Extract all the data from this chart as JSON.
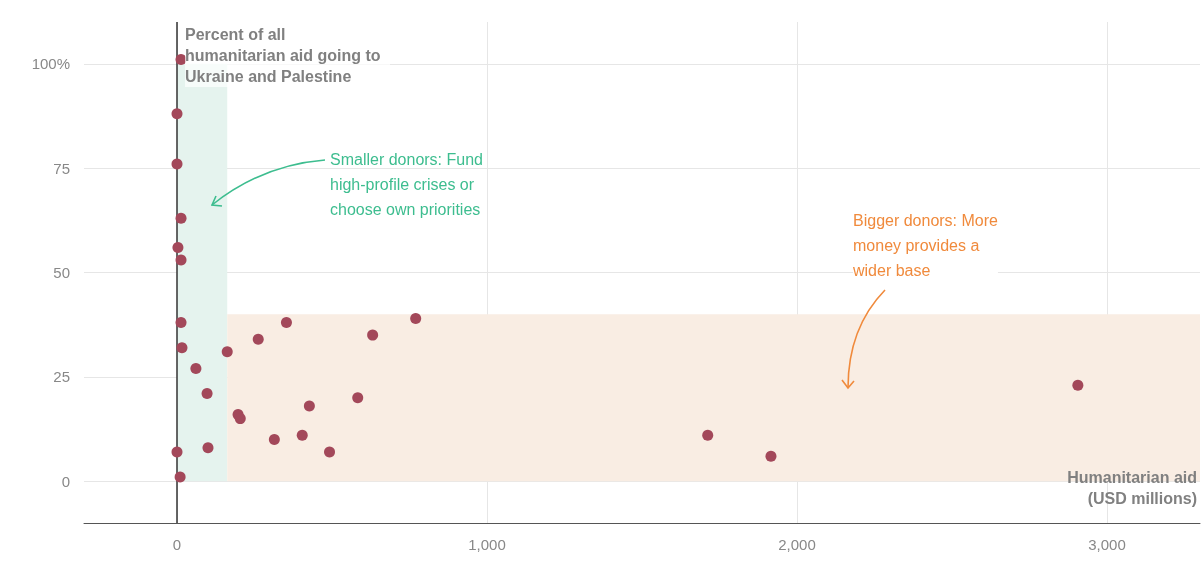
{
  "chart_data": {
    "type": "scatter",
    "xlabel": "Humanitarian aid (USD millions)",
    "ylabel": "Percent of all humanitarian aid going to Ukraine and Palestine",
    "x": [
      13,
      0,
      0,
      13,
      3,
      13,
      13,
      16,
      61,
      97,
      0,
      100,
      10,
      162,
      262,
      353,
      197,
      204,
      314,
      404,
      427,
      492,
      583,
      631,
      770,
      1712,
      1916,
      2906
    ],
    "series": [
      {
        "color": "#a3485a",
        "values": [
          101,
          88,
          76,
          63,
          56,
          53,
          38,
          32,
          27,
          21,
          7,
          8,
          1,
          31,
          34,
          38,
          16,
          15,
          10,
          11,
          18,
          7,
          20,
          35,
          39,
          11,
          6,
          23
        ]
      }
    ],
    "xlim": [
      -300,
      3300
    ],
    "ylim": [
      -10,
      110
    ],
    "xticks": [
      0,
      {
        "value": 1000,
        "label": "1,000"
      },
      {
        "value": 2000,
        "label": "2,000"
      },
      {
        "value": 3000,
        "label": "3,000"
      }
    ],
    "yticks": [
      0,
      25,
      50,
      75,
      {
        "value": 100,
        "label": "100%"
      }
    ],
    "grid": true,
    "marker": "circle",
    "ref_lines": [
      {
        "axis": "x",
        "value": 0,
        "color": "#333333"
      }
    ],
    "bands": [
      {
        "axis": "x",
        "from": 0,
        "to": 162,
        "color": "#e5f3ee"
      },
      {
        "axis": "y",
        "from": 0,
        "to": 40,
        "color": "#f9ede3"
      }
    ],
    "annotations": [
      "Smaller donors: Fund\nhigh-profile crises or\nchoose own priorities",
      "Bigger donors: More\nmoney provides a\nwider base"
    ]
  }
}
